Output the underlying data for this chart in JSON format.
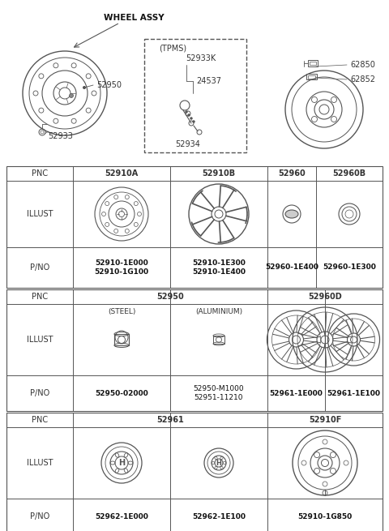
{
  "bg_color": "#ffffff",
  "lc": "#555555",
  "tc": "#333333",
  "bc": "#111111",
  "figsize": [
    4.8,
    6.55
  ],
  "dpi": 100,
  "table1": {
    "pnc_row": [
      "PNC",
      "52910A",
      "52910B",
      "52960",
      "52960B"
    ],
    "pno_row": [
      "P/NO",
      "52910-1E000\n52910-1G100",
      "52910-1E300\n52910-1E400",
      "52960-1E400",
      "52960-1E300"
    ]
  },
  "table2": {
    "pnc_row": [
      "PNC",
      "52950",
      "52960D"
    ],
    "sub_labels": [
      "(STEEL)",
      "(ALUMINIUM)"
    ],
    "pno_row": [
      "P/NO",
      "52950-02000",
      "52950-M1000\n52951-11210",
      "52961-1E000",
      "52961-1E100"
    ]
  },
  "table3": {
    "pnc_row": [
      "PNC",
      "52961",
      "52910F"
    ],
    "pno_row": [
      "P/NO",
      "52962-1E000",
      "52962-1E100",
      "52910-1G850"
    ]
  }
}
